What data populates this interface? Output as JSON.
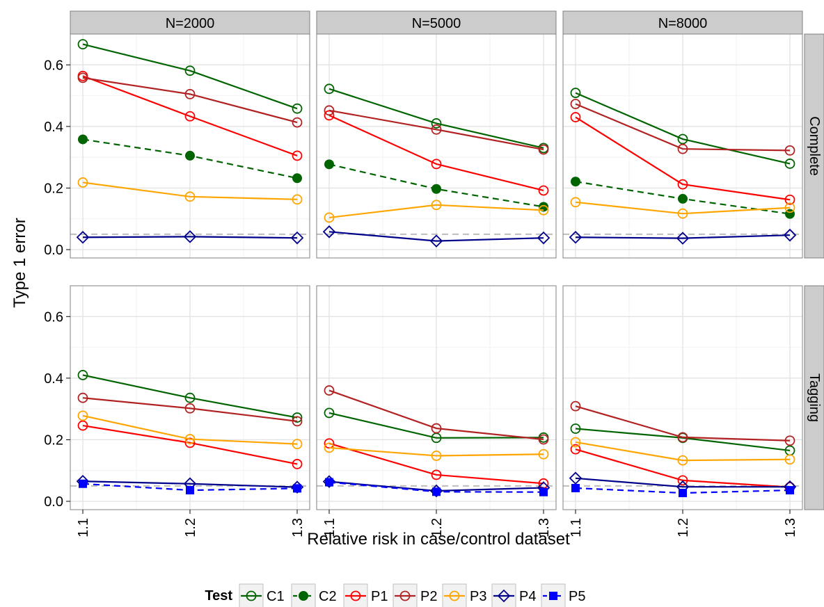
{
  "chart_data": {
    "type": "line",
    "xlabel": "Relative risk in case/control dataset",
    "ylabel": "Type 1 error",
    "x": [
      1.1,
      1.2,
      1.3
    ],
    "x_tick_labels": [
      "1.1",
      "1.2",
      "1.3"
    ],
    "xlim": [
      1.1,
      1.3
    ],
    "ylim": [
      0,
      0.7
    ],
    "y_ticks": [
      0.0,
      0.2,
      0.4,
      0.6
    ],
    "y_tick_labels": [
      "0.0",
      "0.2",
      "0.4",
      "0.6"
    ],
    "reference_line": 0.05,
    "grid": true,
    "legend": {
      "title": "Test",
      "position": "bottom",
      "entries": [
        "C1",
        "C2",
        "P1",
        "P2",
        "P3",
        "P4",
        "P5"
      ]
    },
    "series_styles": [
      {
        "name": "C1",
        "color": "#006400",
        "marker": "open-circle",
        "dash": false
      },
      {
        "name": "C2",
        "color": "#006400",
        "marker": "filled-circle",
        "dash": true
      },
      {
        "name": "P1",
        "color": "#ff0000",
        "marker": "open-circle",
        "dash": false
      },
      {
        "name": "P2",
        "color": "#b22222",
        "marker": "open-circle",
        "dash": false
      },
      {
        "name": "P3",
        "color": "#ffa500",
        "marker": "open-circle",
        "dash": false
      },
      {
        "name": "P4",
        "color": "#00008b",
        "marker": "open-diamond",
        "dash": false
      },
      {
        "name": "P5",
        "color": "#0000ff",
        "marker": "filled-square",
        "dash": true
      }
    ],
    "columns": [
      "N=2000",
      "N=5000",
      "N=8000"
    ],
    "rows": [
      "Complete",
      "Tagging"
    ],
    "panels": [
      {
        "row": "Complete",
        "col": "N=2000",
        "series": [
          {
            "name": "C1",
            "values": [
              0.667,
              0.581,
              0.458
            ]
          },
          {
            "name": "C2",
            "values": [
              0.358,
              0.305,
              0.232
            ]
          },
          {
            "name": "P1",
            "values": [
              0.564,
              0.433,
              0.305
            ]
          },
          {
            "name": "P2",
            "values": [
              0.558,
              0.505,
              0.413
            ]
          },
          {
            "name": "P3",
            "values": [
              0.218,
              0.172,
              0.163
            ]
          },
          {
            "name": "P4",
            "values": [
              0.04,
              0.042,
              0.038
            ]
          }
        ]
      },
      {
        "row": "Complete",
        "col": "N=5000",
        "series": [
          {
            "name": "C1",
            "values": [
              0.522,
              0.41,
              0.33
            ]
          },
          {
            "name": "C2",
            "values": [
              0.277,
              0.197,
              0.139
            ]
          },
          {
            "name": "P1",
            "values": [
              0.436,
              0.278,
              0.192
            ]
          },
          {
            "name": "P2",
            "values": [
              0.452,
              0.39,
              0.325
            ]
          },
          {
            "name": "P3",
            "values": [
              0.104,
              0.145,
              0.128
            ]
          },
          {
            "name": "P4",
            "values": [
              0.058,
              0.028,
              0.038
            ]
          }
        ]
      },
      {
        "row": "Complete",
        "col": "N=8000",
        "series": [
          {
            "name": "C1",
            "values": [
              0.509,
              0.359,
              0.279
            ]
          },
          {
            "name": "C2",
            "values": [
              0.221,
              0.165,
              0.116
            ]
          },
          {
            "name": "P1",
            "values": [
              0.43,
              0.212,
              0.162
            ]
          },
          {
            "name": "P2",
            "values": [
              0.473,
              0.327,
              0.322
            ]
          },
          {
            "name": "P3",
            "values": [
              0.154,
              0.117,
              0.136
            ]
          },
          {
            "name": "P4",
            "values": [
              0.04,
              0.037,
              0.047
            ]
          }
        ]
      },
      {
        "row": "Tagging",
        "col": "N=2000",
        "series": [
          {
            "name": "C1",
            "values": [
              0.41,
              0.336,
              0.272
            ]
          },
          {
            "name": "P1",
            "values": [
              0.246,
              0.19,
              0.121
            ]
          },
          {
            "name": "P2",
            "values": [
              0.336,
              0.302,
              0.26
            ]
          },
          {
            "name": "P3",
            "values": [
              0.278,
              0.202,
              0.186
            ]
          },
          {
            "name": "P4",
            "values": [
              0.065,
              0.057,
              0.046
            ]
          },
          {
            "name": "P5",
            "values": [
              0.057,
              0.036,
              0.042
            ]
          }
        ]
      },
      {
        "row": "Tagging",
        "col": "N=5000",
        "series": [
          {
            "name": "C1",
            "values": [
              0.287,
              0.206,
              0.207
            ]
          },
          {
            "name": "P1",
            "values": [
              0.188,
              0.086,
              0.058
            ]
          },
          {
            "name": "P2",
            "values": [
              0.36,
              0.237,
              0.201
            ]
          },
          {
            "name": "P3",
            "values": [
              0.174,
              0.148,
              0.153
            ]
          },
          {
            "name": "P4",
            "values": [
              0.064,
              0.034,
              0.044
            ]
          },
          {
            "name": "P5",
            "values": [
              0.062,
              0.031,
              0.03
            ]
          }
        ]
      },
      {
        "row": "Tagging",
        "col": "N=8000",
        "series": [
          {
            "name": "C1",
            "values": [
              0.236,
              0.206,
              0.165
            ]
          },
          {
            "name": "P1",
            "values": [
              0.169,
              0.068,
              0.046
            ]
          },
          {
            "name": "P2",
            "values": [
              0.309,
              0.208,
              0.197
            ]
          },
          {
            "name": "P3",
            "values": [
              0.192,
              0.133,
              0.136
            ]
          },
          {
            "name": "P4",
            "values": [
              0.075,
              0.047,
              0.047
            ]
          },
          {
            "name": "P5",
            "values": [
              0.043,
              0.027,
              0.036
            ]
          }
        ]
      }
    ]
  }
}
